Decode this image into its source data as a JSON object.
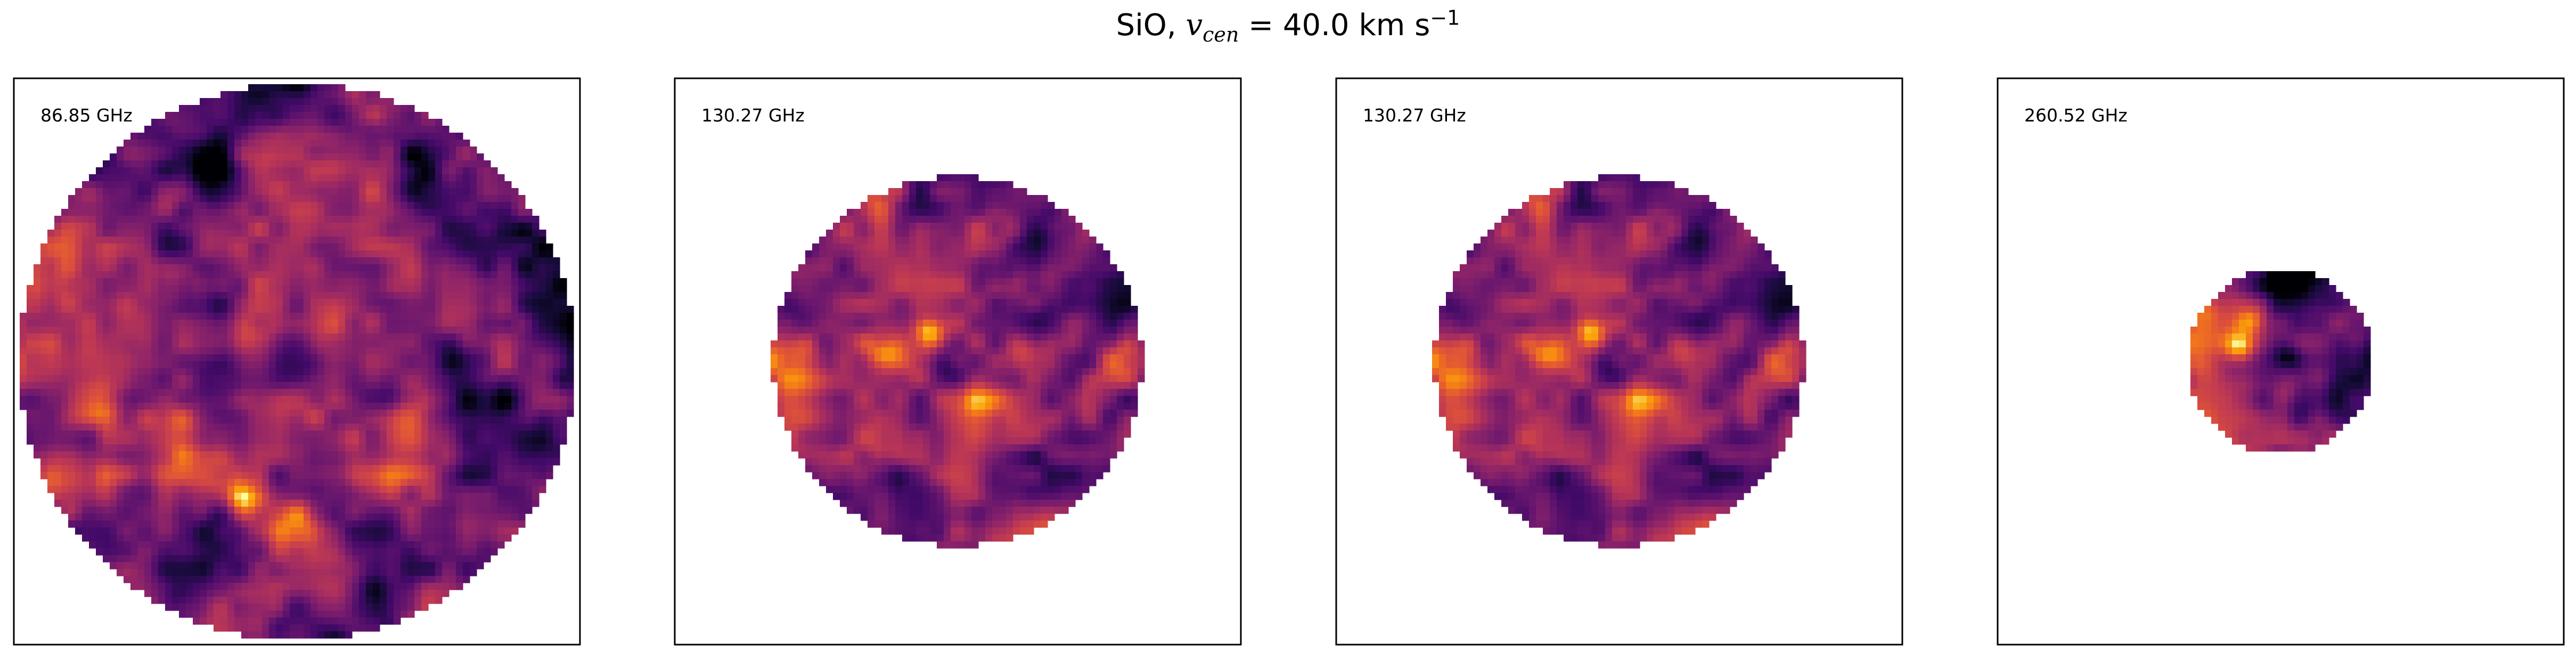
{
  "figure": {
    "title_prefix": "SiO, ",
    "title_symbol": "v",
    "title_subscript": "cen",
    "title_value": " =  40.0 km s",
    "title_superscript": "−1"
  },
  "colormap": "inferno",
  "chart_data": [
    {
      "type": "heatmap",
      "label": "86.85 GHz",
      "frequency_ghz": 86.85,
      "field_fraction": 0.98,
      "seed": 11,
      "features": [
        {
          "u": -0.32,
          "v": -0.05,
          "s": 0.07,
          "a": 1.0
        },
        {
          "u": -0.15,
          "v": -0.12,
          "s": 0.06,
          "a": 0.9
        },
        {
          "u": -0.18,
          "v": 0.5,
          "s": 0.05,
          "a": 1.1
        },
        {
          "u": 0.12,
          "v": -0.1,
          "s": 0.08,
          "a": 0.6
        },
        {
          "u": 0.22,
          "v": -0.55,
          "s": 0.09,
          "a": 0.5
        },
        {
          "u": -0.4,
          "v": 0.2,
          "s": 0.1,
          "a": 0.5
        },
        {
          "u": 0.7,
          "v": 0.0,
          "s": 0.12,
          "a": -0.4
        },
        {
          "u": -0.28,
          "v": -0.72,
          "s": 0.08,
          "a": -0.5
        },
        {
          "u": 0.45,
          "v": -0.6,
          "s": 0.06,
          "a": -0.5
        },
        {
          "u": 0.35,
          "v": 0.2,
          "s": 0.07,
          "a": 0.5
        }
      ]
    },
    {
      "type": "heatmap",
      "label": "130.27 GHz",
      "frequency_ghz": 130.27,
      "field_fraction": 0.65,
      "seed": 23,
      "features": [
        {
          "u": -0.4,
          "v": -0.05,
          "s": 0.07,
          "a": 1.1
        },
        {
          "u": -0.15,
          "v": -0.15,
          "s": 0.06,
          "a": 1.2
        },
        {
          "u": 0.1,
          "v": 0.25,
          "s": 0.09,
          "a": 0.6
        },
        {
          "u": 0.35,
          "v": -0.05,
          "s": 0.08,
          "a": 0.6
        },
        {
          "u": 0.2,
          "v": -0.8,
          "s": 0.08,
          "a": 0.5
        },
        {
          "u": -0.25,
          "v": 0.55,
          "s": 0.1,
          "a": 0.5
        },
        {
          "u": 0.2,
          "v": -0.5,
          "s": 0.08,
          "a": -0.7
        },
        {
          "u": -0.35,
          "v": 0.6,
          "s": 0.1,
          "a": -0.7
        },
        {
          "u": 0.45,
          "v": 0.5,
          "s": 0.08,
          "a": -0.6
        },
        {
          "u": -0.05,
          "v": 0.05,
          "s": 0.07,
          "a": -0.5
        }
      ]
    },
    {
      "type": "heatmap",
      "label": "130.27 GHz",
      "frequency_ghz": 130.27,
      "field_fraction": 0.65,
      "seed": 23,
      "features": [
        {
          "u": -0.4,
          "v": -0.05,
          "s": 0.07,
          "a": 1.1
        },
        {
          "u": -0.15,
          "v": -0.15,
          "s": 0.06,
          "a": 1.2
        },
        {
          "u": 0.1,
          "v": 0.25,
          "s": 0.09,
          "a": 0.6
        },
        {
          "u": 0.35,
          "v": -0.05,
          "s": 0.08,
          "a": 0.6
        },
        {
          "u": 0.2,
          "v": -0.8,
          "s": 0.08,
          "a": 0.5
        },
        {
          "u": -0.25,
          "v": 0.55,
          "s": 0.1,
          "a": 0.5
        },
        {
          "u": 0.2,
          "v": -0.5,
          "s": 0.08,
          "a": -0.7
        },
        {
          "u": -0.35,
          "v": 0.6,
          "s": 0.1,
          "a": -0.7
        },
        {
          "u": 0.45,
          "v": 0.5,
          "s": 0.08,
          "a": -0.6
        },
        {
          "u": -0.05,
          "v": 0.05,
          "s": 0.07,
          "a": -0.5
        }
      ]
    },
    {
      "type": "heatmap",
      "label": "260.52 GHz",
      "frequency_ghz": 260.52,
      "field_fraction": 0.325,
      "seed": 47,
      "features": [
        {
          "u": -0.45,
          "v": -0.15,
          "s": 0.12,
          "a": 1.2
        },
        {
          "u": -0.3,
          "v": -0.45,
          "s": 0.1,
          "a": 0.6
        },
        {
          "u": 0.05,
          "v": -0.05,
          "s": 0.1,
          "a": -0.6
        },
        {
          "u": 0.1,
          "v": 0.25,
          "s": 0.12,
          "a": 0.4
        }
      ]
    }
  ]
}
